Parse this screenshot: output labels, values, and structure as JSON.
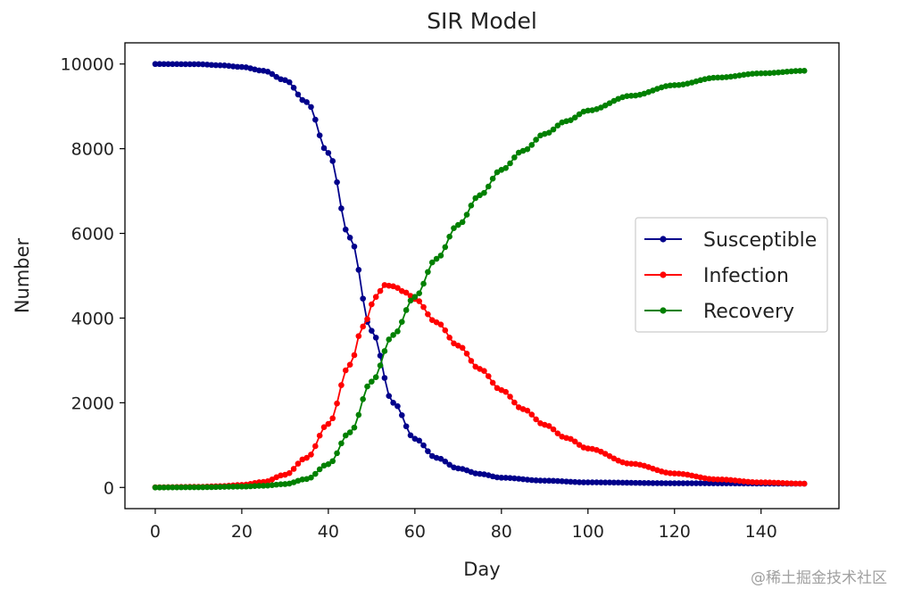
{
  "chart_data": {
    "type": "line",
    "title": "SIR Model",
    "xlabel": "Day",
    "ylabel": "Number",
    "xlim": [
      -7,
      158
    ],
    "ylim": [
      -500,
      10500
    ],
    "xticks": [
      0,
      20,
      40,
      60,
      80,
      100,
      120,
      140
    ],
    "yticks": [
      0,
      2000,
      4000,
      6000,
      8000,
      10000
    ],
    "legend_position": "center-right",
    "grid": false,
    "x_start": 0,
    "x_end": 150,
    "x_step": 1,
    "series": [
      {
        "name": "Susceptible",
        "color": "#00008b",
        "marker": "dot",
        "keypoints": [
          [
            0,
            10000
          ],
          [
            10,
            9995
          ],
          [
            15,
            9970
          ],
          [
            20,
            9930
          ],
          [
            25,
            9840
          ],
          [
            30,
            9620
          ],
          [
            35,
            9100
          ],
          [
            40,
            7900
          ],
          [
            45,
            5900
          ],
          [
            50,
            3700
          ],
          [
            55,
            2000
          ],
          [
            60,
            1150
          ],
          [
            65,
            700
          ],
          [
            70,
            450
          ],
          [
            75,
            320
          ],
          [
            80,
            230
          ],
          [
            90,
            160
          ],
          [
            100,
            120
          ],
          [
            120,
            100
          ],
          [
            150,
            90
          ]
        ]
      },
      {
        "name": "Infection",
        "color": "#ff0000",
        "marker": "dot",
        "keypoints": [
          [
            0,
            5
          ],
          [
            10,
            15
          ],
          [
            15,
            30
          ],
          [
            20,
            60
          ],
          [
            25,
            130
          ],
          [
            30,
            300
          ],
          [
            35,
            700
          ],
          [
            40,
            1500
          ],
          [
            45,
            2900
          ],
          [
            48,
            3800
          ],
          [
            51,
            4500
          ],
          [
            53,
            4780
          ],
          [
            55,
            4750
          ],
          [
            58,
            4600
          ],
          [
            60,
            4450
          ],
          [
            65,
            3900
          ],
          [
            70,
            3350
          ],
          [
            75,
            2800
          ],
          [
            80,
            2300
          ],
          [
            85,
            1850
          ],
          [
            90,
            1480
          ],
          [
            95,
            1170
          ],
          [
            100,
            920
          ],
          [
            110,
            560
          ],
          [
            120,
            330
          ],
          [
            130,
            190
          ],
          [
            140,
            120
          ],
          [
            150,
            90
          ]
        ]
      },
      {
        "name": "Recovery",
        "color": "#008000",
        "marker": "dot",
        "keypoints": [
          [
            0,
            0
          ],
          [
            10,
            5
          ],
          [
            20,
            20
          ],
          [
            25,
            40
          ],
          [
            30,
            80
          ],
          [
            35,
            200
          ],
          [
            40,
            550
          ],
          [
            45,
            1300
          ],
          [
            50,
            2500
          ],
          [
            55,
            3600
          ],
          [
            60,
            4500
          ],
          [
            65,
            5400
          ],
          [
            70,
            6200
          ],
          [
            75,
            6900
          ],
          [
            80,
            7500
          ],
          [
            85,
            7950
          ],
          [
            90,
            8350
          ],
          [
            95,
            8650
          ],
          [
            100,
            8900
          ],
          [
            110,
            9250
          ],
          [
            120,
            9500
          ],
          [
            130,
            9680
          ],
          [
            140,
            9780
          ],
          [
            150,
            9840
          ]
        ]
      }
    ]
  },
  "watermark": "@稀土掘金技术社区"
}
